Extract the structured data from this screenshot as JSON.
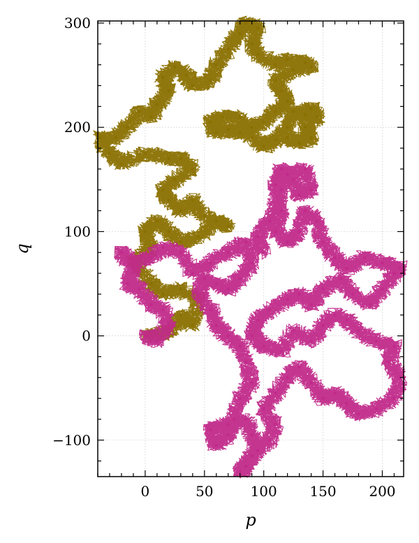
{
  "chart_data": {
    "type": "scatter",
    "title": "",
    "xlabel": "p",
    "ylabel": "q",
    "xlim": [
      -40,
      218
    ],
    "ylim": [
      -135,
      302
    ],
    "xticks": [
      0,
      50,
      100,
      150,
      200
    ],
    "yticks": [
      -100,
      0,
      100,
      200,
      300
    ],
    "xtick_labels": [
      "0",
      "50",
      "100",
      "150",
      "200"
    ],
    "ytick_labels": [
      "−100",
      "0",
      "100",
      "200",
      "300"
    ],
    "grid": true,
    "legend": "none",
    "series": [
      {
        "color": "#8a7000",
        "style": "random-walk trajectory",
        "points": [
          [
            0,
            0
          ],
          [
            20,
            3
          ],
          [
            30,
            20
          ],
          [
            40,
            10
          ],
          [
            45,
            35
          ],
          [
            30,
            45
          ],
          [
            15,
            40
          ],
          [
            5,
            50
          ],
          [
            -10,
            70
          ],
          [
            5,
            85
          ],
          [
            0,
            100
          ],
          [
            10,
            110
          ],
          [
            20,
            100
          ],
          [
            30,
            90
          ],
          [
            45,
            95
          ],
          [
            60,
            110
          ],
          [
            70,
            105
          ],
          [
            50,
            115
          ],
          [
            40,
            130
          ],
          [
            30,
            120
          ],
          [
            20,
            130
          ],
          [
            15,
            140
          ],
          [
            25,
            150
          ],
          [
            40,
            160
          ],
          [
            30,
            170
          ],
          [
            20,
            170
          ],
          [
            0,
            175
          ],
          [
            -20,
            165
          ],
          [
            -30,
            175
          ],
          [
            -38,
            190
          ],
          [
            -25,
            190
          ],
          [
            -15,
            200
          ],
          [
            -5,
            215
          ],
          [
            5,
            210
          ],
          [
            10,
            222
          ],
          [
            20,
            235
          ],
          [
            15,
            248
          ],
          [
            25,
            258
          ],
          [
            35,
            250
          ],
          [
            40,
            240
          ],
          [
            55,
            245
          ],
          [
            60,
            260
          ],
          [
            70,
            275
          ],
          [
            80,
            290
          ],
          [
            85,
            300
          ],
          [
            95,
            295
          ],
          [
            90,
            280
          ],
          [
            95,
            270
          ],
          [
            110,
            260
          ],
          [
            120,
            265
          ],
          [
            135,
            262
          ],
          [
            140,
            258
          ],
          [
            125,
            255
          ],
          [
            110,
            245
          ],
          [
            115,
            235
          ],
          [
            120,
            225
          ],
          [
            110,
            215
          ],
          [
            100,
            205
          ],
          [
            90,
            200
          ],
          [
            80,
            195
          ],
          [
            70,
            198
          ],
          [
            60,
            195
          ],
          [
            55,
            205
          ],
          [
            65,
            210
          ],
          [
            80,
            210
          ],
          [
            90,
            190
          ],
          [
            100,
            182
          ],
          [
            110,
            188
          ],
          [
            120,
            200
          ],
          [
            125,
            215
          ],
          [
            135,
            212
          ],
          [
            140,
            218
          ],
          [
            145,
            210
          ],
          [
            135,
            200
          ],
          [
            140,
            190
          ],
          [
            130,
            185
          ],
          [
            120,
            190
          ]
        ]
      },
      {
        "color": "#c12a8a",
        "style": "random-walk trajectory",
        "points": [
          [
            0,
            0
          ],
          [
            10,
            -5
          ],
          [
            20,
            10
          ],
          [
            15,
            25
          ],
          [
            5,
            30
          ],
          [
            -5,
            45
          ],
          [
            -15,
            50
          ],
          [
            -10,
            65
          ],
          [
            -20,
            80
          ],
          [
            -10,
            70
          ],
          [
            5,
            75
          ],
          [
            15,
            85
          ],
          [
            30,
            80
          ],
          [
            40,
            60
          ],
          [
            55,
            70
          ],
          [
            70,
            80
          ],
          [
            85,
            90
          ],
          [
            90,
            70
          ],
          [
            80,
            55
          ],
          [
            70,
            45
          ],
          [
            60,
            50
          ],
          [
            50,
            55
          ],
          [
            45,
            40
          ],
          [
            55,
            25
          ],
          [
            60,
            10
          ],
          [
            70,
            0
          ],
          [
            80,
            -10
          ],
          [
            85,
            -25
          ],
          [
            90,
            -45
          ],
          [
            80,
            -60
          ],
          [
            75,
            -80
          ],
          [
            70,
            -95
          ],
          [
            60,
            -105
          ],
          [
            55,
            -90
          ],
          [
            70,
            -85
          ],
          [
            85,
            -80
          ],
          [
            90,
            -95
          ],
          [
            95,
            -110
          ],
          [
            85,
            -125
          ],
          [
            80,
            -130
          ],
          [
            90,
            -115
          ],
          [
            105,
            -100
          ],
          [
            110,
            -85
          ],
          [
            100,
            -70
          ],
          [
            110,
            -55
          ],
          [
            120,
            -40
          ],
          [
            130,
            -30
          ],
          [
            140,
            -45
          ],
          [
            150,
            -60
          ],
          [
            160,
            -55
          ],
          [
            170,
            -65
          ],
          [
            180,
            -75
          ],
          [
            195,
            -70
          ],
          [
            210,
            -60
          ],
          [
            215,
            -40
          ],
          [
            205,
            -25
          ],
          [
            210,
            -10
          ],
          [
            195,
            -5
          ],
          [
            180,
            5
          ],
          [
            170,
            15
          ],
          [
            160,
            20
          ],
          [
            150,
            10
          ],
          [
            140,
            -5
          ],
          [
            125,
            5
          ],
          [
            115,
            -15
          ],
          [
            100,
            -10
          ],
          [
            90,
            0
          ],
          [
            95,
            15
          ],
          [
            105,
            25
          ],
          [
            120,
            35
          ],
          [
            130,
            40
          ],
          [
            140,
            30
          ],
          [
            150,
            45
          ],
          [
            165,
            55
          ],
          [
            175,
            40
          ],
          [
            190,
            30
          ],
          [
            200,
            45
          ],
          [
            210,
            60
          ],
          [
            215,
            65
          ],
          [
            200,
            70
          ],
          [
            185,
            75
          ],
          [
            170,
            65
          ],
          [
            160,
            75
          ],
          [
            150,
            90
          ],
          [
            145,
            110
          ],
          [
            135,
            120
          ],
          [
            130,
            100
          ],
          [
            120,
            90
          ],
          [
            110,
            100
          ],
          [
            115,
            120
          ],
          [
            110,
            145
          ],
          [
            115,
            160
          ],
          [
            125,
            150
          ],
          [
            130,
            135
          ],
          [
            140,
            140
          ],
          [
            135,
            160
          ],
          [
            120,
            155
          ],
          [
            115,
            140
          ],
          [
            105,
            110
          ],
          [
            95,
            95
          ],
          [
            100,
            80
          ]
        ]
      }
    ]
  }
}
